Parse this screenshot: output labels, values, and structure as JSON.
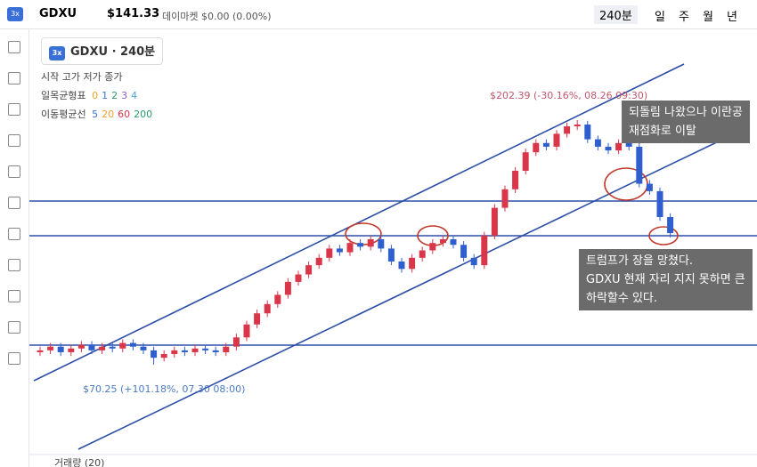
{
  "header": {
    "logo": "3x",
    "symbol": "GDXU",
    "price": "$141.33",
    "market": "데이마켓 $0.00 (0.00%)",
    "interval": "240분",
    "periods": [
      "일",
      "주",
      "월",
      "년"
    ]
  },
  "legend": {
    "logo": "3x",
    "title": "GDXU · 240분",
    "ohlc": "시작 고가 저가 종가",
    "indicators": [
      {
        "name": "일목균형표",
        "params": [
          "0",
          "1",
          "2",
          "3",
          "4"
        ]
      },
      {
        "name": "이동평균선",
        "params": [
          "5",
          "20",
          "60",
          "200"
        ]
      }
    ]
  },
  "chart_data": {
    "type": "candlestick",
    "up_color": "#d9364a",
    "down_color": "#2f5fcf",
    "high_label": "$202.39 (-30.16%, 08.26 09:30)",
    "low_label": "$70.25 (+101.18%, 07.30 08:00)",
    "candles": [
      [
        77,
        80,
        75,
        78
      ],
      [
        78,
        82,
        76,
        80
      ],
      [
        80,
        82,
        75,
        77
      ],
      [
        77,
        81,
        75,
        79
      ],
      [
        79,
        83,
        77,
        81
      ],
      [
        81,
        83,
        76,
        78
      ],
      [
        78,
        82,
        76,
        80
      ],
      [
        80,
        82,
        77,
        79
      ],
      [
        79,
        84,
        77,
        82
      ],
      [
        82,
        84,
        78,
        80
      ],
      [
        80,
        82,
        76,
        78
      ],
      [
        78,
        80,
        70.25,
        74
      ],
      [
        74,
        78,
        72,
        76
      ],
      [
        76,
        80,
        74,
        78
      ],
      [
        78,
        80,
        75,
        77
      ],
      [
        77,
        81,
        75,
        79
      ],
      [
        79,
        81,
        76,
        78
      ],
      [
        78,
        80,
        75,
        77
      ],
      [
        77,
        82,
        75,
        80
      ],
      [
        80,
        87,
        78,
        85
      ],
      [
        85,
        94,
        83,
        92
      ],
      [
        92,
        100,
        90,
        98
      ],
      [
        98,
        105,
        96,
        103
      ],
      [
        103,
        110,
        101,
        108
      ],
      [
        108,
        117,
        106,
        115
      ],
      [
        115,
        121,
        113,
        119
      ],
      [
        119,
        126,
        117,
        124
      ],
      [
        124,
        130,
        122,
        128
      ],
      [
        128,
        135,
        126,
        133
      ],
      [
        133,
        135,
        129,
        131
      ],
      [
        131,
        138,
        129,
        136
      ],
      [
        136,
        138,
        132,
        134
      ],
      [
        134,
        140,
        132,
        138
      ],
      [
        138,
        140,
        131,
        133
      ],
      [
        133,
        135,
        124,
        126
      ],
      [
        126,
        128,
        120,
        122
      ],
      [
        122,
        130,
        120,
        128
      ],
      [
        128,
        134,
        126,
        132
      ],
      [
        132,
        138,
        130,
        136
      ],
      [
        136,
        140,
        134,
        138
      ],
      [
        138,
        140,
        133,
        135
      ],
      [
        135,
        137,
        126,
        128
      ],
      [
        128,
        130,
        122,
        124
      ],
      [
        124,
        142,
        122,
        140
      ],
      [
        140,
        157,
        138,
        155
      ],
      [
        155,
        167,
        153,
        165
      ],
      [
        165,
        177,
        163,
        175
      ],
      [
        175,
        187,
        173,
        185
      ],
      [
        185,
        192,
        183,
        190
      ],
      [
        190,
        192,
        186,
        188
      ],
      [
        188,
        197,
        186,
        195
      ],
      [
        195,
        201,
        193,
        199
      ],
      [
        199,
        202.39,
        197,
        200
      ],
      [
        200,
        202,
        190,
        192
      ],
      [
        192,
        194,
        186,
        188
      ],
      [
        188,
        190,
        184,
        186
      ],
      [
        186,
        192,
        184,
        190
      ],
      [
        190,
        192,
        186,
        188
      ],
      [
        188,
        190,
        166,
        168
      ],
      [
        168,
        170,
        162,
        164
      ],
      [
        164,
        166,
        148,
        150
      ],
      [
        150,
        152,
        139,
        141.33
      ]
    ]
  },
  "notes": [
    {
      "lines": [
        "되돌림 나왔으나 이란공",
        "재점화로 이탈"
      ]
    },
    {
      "lines": [
        "트럼프가 장을 망쳤다.",
        "GDXU 현재 자리 지지 못하면 큰",
        "하락할수 있다."
      ]
    }
  ],
  "volume_label": "거래량 (20)"
}
